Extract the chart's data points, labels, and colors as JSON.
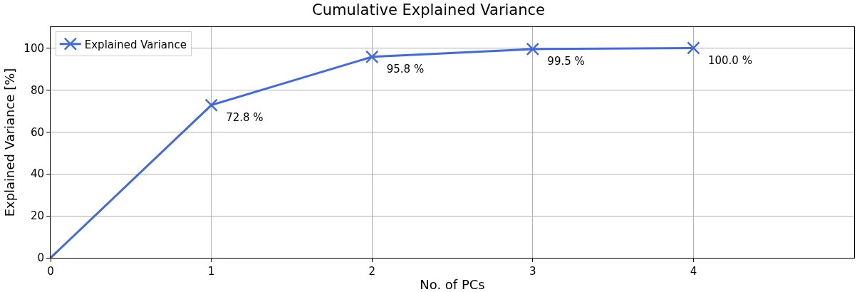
{
  "chart_data": {
    "type": "line",
    "title": "Cumulative Explained Variance",
    "xlabel": "No. of PCs",
    "ylabel": "Explained Variance [%]",
    "x": [
      0,
      1,
      2,
      3,
      4
    ],
    "series": [
      {
        "name": "Explained Variance",
        "color": "#4169e1",
        "values": [
          0,
          72.8,
          95.8,
          99.5,
          100.0
        ],
        "value_labels": [
          null,
          "72.8 %",
          "95.8 %",
          "99.5 %",
          "100.0 %"
        ]
      }
    ],
    "xlim": [
      0,
      5
    ],
    "xticks": [
      0,
      1,
      2,
      3,
      4
    ],
    "ylim": [
      0,
      110
    ],
    "yticks": [
      0,
      20,
      40,
      60,
      80,
      100
    ],
    "grid": true,
    "legend": "top left",
    "marker": "cross",
    "line_style": "solid"
  }
}
